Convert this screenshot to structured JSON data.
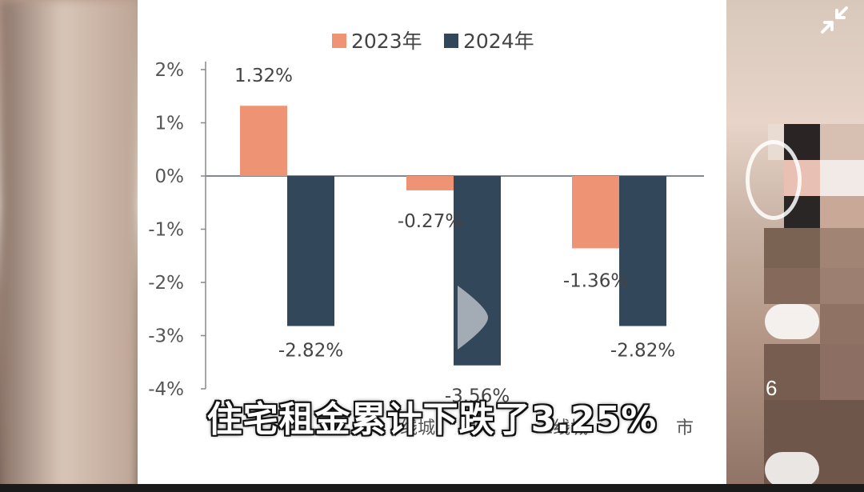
{
  "chart_data": {
    "type": "bar",
    "categories": [
      "",
      "",
      ""
    ],
    "series": [
      {
        "name": "2023年",
        "color": "#ee9474",
        "values": [
          1.32,
          -0.27,
          -1.36
        ],
        "labels": [
          "1.32%",
          "-0.27%",
          "-1.36%"
        ]
      },
      {
        "name": "2024年",
        "color": "#33475b",
        "values": [
          -2.82,
          -3.56,
          -2.82
        ],
        "labels": [
          "-2.82%",
          "-3.56%",
          "-2.82%"
        ]
      }
    ],
    "ylim": [
      -4,
      2
    ],
    "yticks": [
      "2%",
      "1%",
      "0%",
      "-1%",
      "-2%",
      "-3%",
      "-4%"
    ],
    "ytick_values": [
      2,
      1,
      0,
      -1,
      -2,
      -3,
      -4
    ],
    "grid": false,
    "legend": "top-center"
  },
  "caption": "住宅租金累计下跌了3.25%",
  "partial_category_labels": [
    "线城",
    "二线城",
    "市"
  ],
  "side": {
    "count": "6"
  }
}
